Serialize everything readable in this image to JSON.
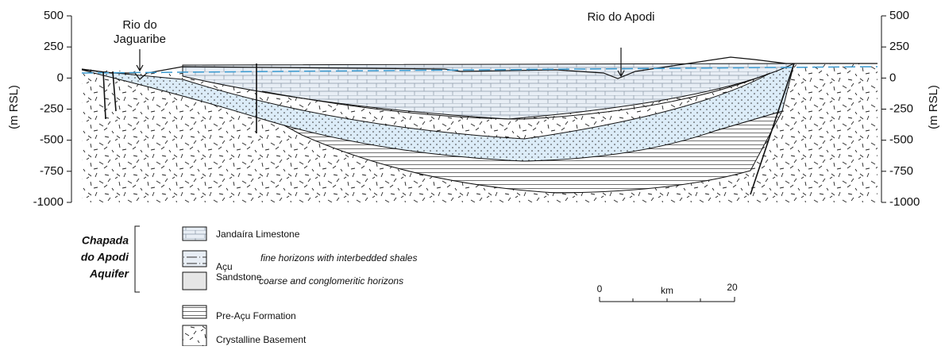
{
  "axis": {
    "label": "(m RSL)",
    "ticks": [
      500,
      250,
      0,
      -250,
      -500,
      -750,
      -1000
    ]
  },
  "annotations": {
    "rio_jaguaribe": [
      "Rio do",
      "Jaguaribe"
    ],
    "rio_apodi": "Rio do Apodi"
  },
  "legend": {
    "group": [
      "Chapada",
      "do Apodi",
      "Aquifer"
    ],
    "limestone": "Jandaíra Limestone",
    "sandstone": [
      "Açu",
      "Sandstone"
    ],
    "fine": "fine horizons with interbedded shales",
    "coarse": "coarse and conglomeritic horizons",
    "pre_acu": "Pre-Açu Formation",
    "basement": "Crystalline Basement"
  },
  "scale_bar": {
    "start": "0",
    "unit": "km",
    "end": "20"
  }
}
